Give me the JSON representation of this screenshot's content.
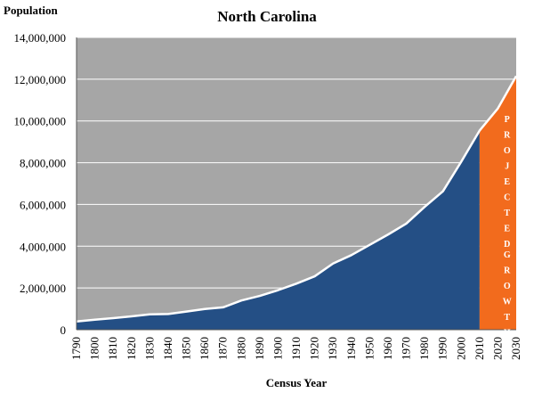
{
  "chart_data": {
    "type": "area",
    "title": "North Carolina",
    "ylabel": "Population",
    "xlabel": "Census Year",
    "ylim": [
      0,
      14000000
    ],
    "y_ticks": [
      "0",
      "2,000,000",
      "4,000,000",
      "6,000,000",
      "8,000,000",
      "10,000,000",
      "12,000,000",
      "14,000,000"
    ],
    "y_tick_values": [
      0,
      2000000,
      4000000,
      6000000,
      8000000,
      10000000,
      12000000,
      14000000
    ],
    "x_ticks": [
      "1790",
      "1800",
      "1810",
      "1820",
      "1830",
      "1840",
      "1850",
      "1860",
      "1870",
      "1880",
      "1890",
      "1900",
      "1910",
      "1920",
      "1930",
      "1940",
      "1950",
      "1960",
      "1970",
      "1980",
      "1990",
      "2000",
      "2010",
      "2020",
      "2030"
    ],
    "x": [
      1790,
      1800,
      1810,
      1820,
      1830,
      1840,
      1850,
      1860,
      1870,
      1880,
      1890,
      1900,
      1910,
      1920,
      1930,
      1940,
      1950,
      1960,
      1970,
      1980,
      1990,
      2000,
      2010
    ],
    "values": [
      393751,
      478103,
      555500,
      638829,
      737987,
      753419,
      869039,
      992622,
      1071361,
      1399750,
      1617949,
      1893810,
      2206287,
      2559123,
      3170276,
      3571623,
      4061929,
      4556155,
      5082059,
      5881766,
      6628637,
      8049313,
      9535483
    ],
    "projected_x": [
      2010,
      2020,
      2030
    ],
    "projected_values": [
      9535483,
      10600000,
      12150000
    ],
    "annotation_projected": "PROJECTED",
    "annotation_growth": "GROWTH",
    "grid": true,
    "colors": {
      "plot_background": "#a6a6a6",
      "area_fill": "#244f85",
      "projected_fill": "#f26b1d",
      "outline": "#ffffff",
      "gridline": "#ffffff"
    }
  }
}
